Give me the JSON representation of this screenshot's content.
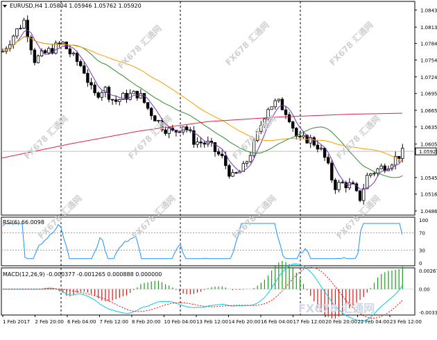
{
  "header": {
    "symbol_line": "EURUSD,H4  1.05804 1.05946 1.05762 1.05920",
    "rsi_label": "RSI(6) 66.0098",
    "macd_label": "MACD(12,26,9) -0.000377 -0.001265 0.000888 0.000000"
  },
  "watermark": {
    "text": "FX678 汇通网",
    "bottom_text": "FX678 汇通网"
  },
  "price_axis": {
    "labels": [
      "1.08435",
      "1.08130",
      "1.07840",
      "1.07545",
      "1.07245",
      "1.06950",
      "1.06650",
      "1.06355",
      "1.06050",
      "1.05455",
      "1.05160",
      "1.04860"
    ],
    "current_price": "1.05920"
  },
  "rsi_axis": {
    "labels": [
      "100",
      "70",
      "30",
      "0"
    ]
  },
  "macd_axis": {
    "labels": [
      "0.002672",
      "0.00",
      "-0.003336"
    ]
  },
  "time_axis": {
    "labels": [
      "1 Feb 2017",
      "2 Feb 20:00",
      "6 Feb 04:00",
      "7 Feb 12:00",
      "8 Feb 20:00",
      "10 Feb 04:00",
      "13 Feb 12:00",
      "14 Feb 20:00",
      "16 Feb 04:00",
      "17 Feb 12:00",
      "20 Feb 20:00",
      "22 Feb 04:00",
      "23 Feb 12:00"
    ]
  },
  "colors": {
    "bull_candle": "#ffffff",
    "bear_candle": "#000000",
    "ma_fast": "#7b2fbf",
    "ma_mid": "#2e8b2e",
    "ma_slow": "#ff9900",
    "ma_long": "#e0204a",
    "rsi_line": "#1e90ff",
    "macd_signal": "#ff0000",
    "macd_line": "#00cfe6",
    "hist_pos": "#1a9a1a",
    "hist_neg": "#e01010"
  },
  "chart_data": {
    "type": "candlestick",
    "symbol": "EURUSD",
    "timeframe": "H4",
    "ohlc_header": {
      "open": 1.05804,
      "high": 1.05946,
      "low": 1.05762,
      "close": 1.0592
    },
    "y_range": [
      1.0486,
      1.0844
    ],
    "rsi": {
      "period": 6,
      "value": 66.0098,
      "levels": [
        70,
        30
      ],
      "range": [
        0,
        100
      ]
    },
    "macd": {
      "fast": 12,
      "slow": 26,
      "signal": 9,
      "values": [
        -0.000377,
        -0.001265,
        0.000888,
        0.0
      ],
      "range": [
        -0.003336,
        0.002672
      ]
    }
  }
}
